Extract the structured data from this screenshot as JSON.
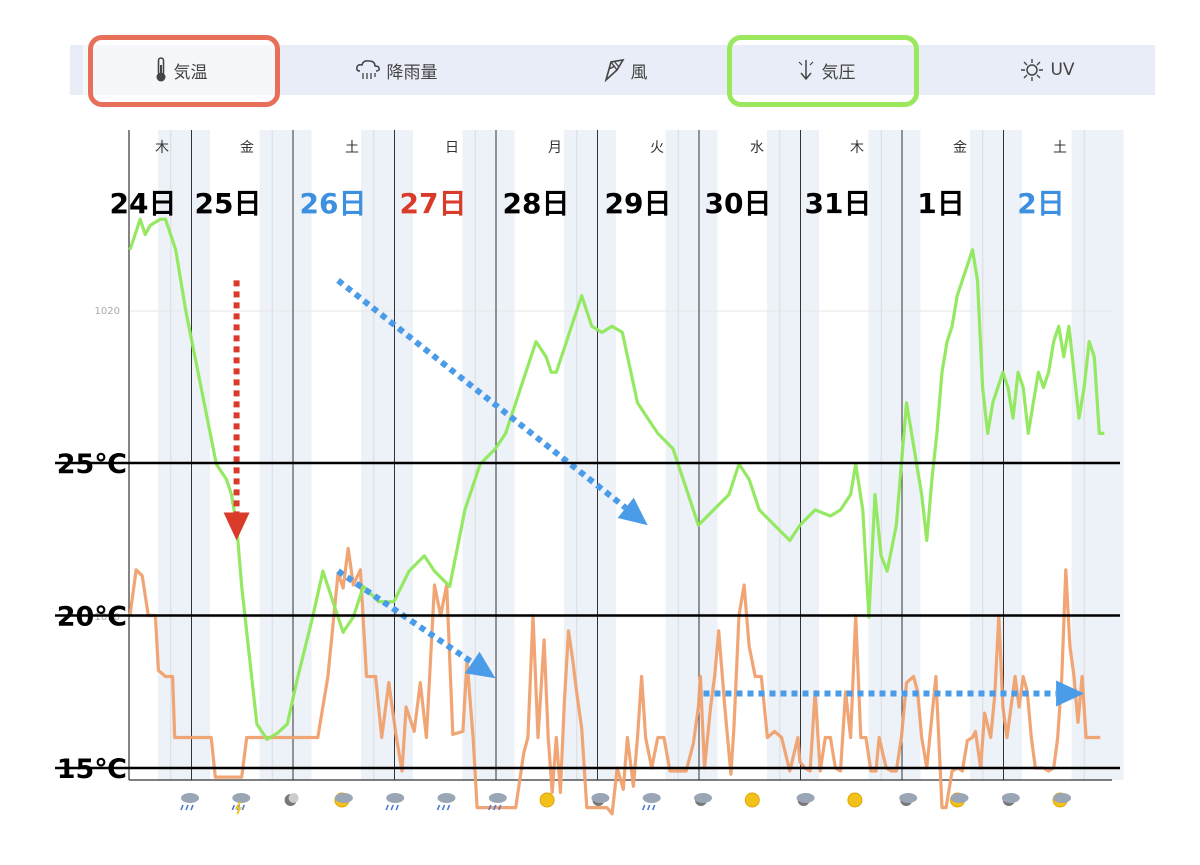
{
  "tabs": [
    {
      "key": "temp",
      "label": "気温",
      "icon": "thermometer-icon",
      "active": true
    },
    {
      "key": "rain",
      "label": "降雨量",
      "icon": "rain-cloud-icon",
      "active": false
    },
    {
      "key": "wind",
      "label": "風",
      "icon": "wind-sock-icon",
      "active": false
    },
    {
      "key": "pressure",
      "label": "気圧",
      "icon": "pressure-arrow-icon",
      "active": false
    },
    {
      "key": "uv",
      "label": "UV",
      "icon": "sun-icon",
      "active": false
    }
  ],
  "highlights": {
    "temp_tab_color": "#e8705a",
    "pressure_tab_color": "#9be85e"
  },
  "colors": {
    "temperature": "#f0a06e",
    "pressure": "#8fe85a",
    "red_arrow": "#d93a2a",
    "blue_arrow": "#4a9be8",
    "band": "#edf1f8"
  },
  "chart_data": {
    "type": "line",
    "weekdays": [
      "木",
      "金",
      "土",
      "日",
      "月",
      "火",
      "水",
      "木",
      "金",
      "土"
    ],
    "days": [
      {
        "label": "24日",
        "color": "#000000"
      },
      {
        "label": "25日",
        "color": "#000000"
      },
      {
        "label": "26日",
        "color": "#3d8fe0"
      },
      {
        "label": "27日",
        "color": "#d93a2a"
      },
      {
        "label": "28日",
        "color": "#000000"
      },
      {
        "label": "29日",
        "color": "#000000"
      },
      {
        "label": "30日",
        "color": "#000000"
      },
      {
        "label": "31日",
        "color": "#000000"
      },
      {
        "label": "1日",
        "color": "#000000"
      },
      {
        "label": "2日",
        "color": "#3d8fe0"
      }
    ],
    "x_range_days": [
      0,
      9.6
    ],
    "temp_axis": {
      "ticks": [
        "15℃",
        "20℃",
        "25℃"
      ],
      "values": [
        15,
        20,
        25
      ],
      "ylim": [
        15,
        25
      ]
    },
    "pressure_axis": {
      "ticks": [
        "1010",
        "1020"
      ],
      "values": [
        1010,
        1020
      ],
      "ylim": [
        1005,
        1025
      ]
    },
    "weather_icons": [
      "rain-icon",
      "thunder-rain-icon",
      "moon-icon",
      "sun-cloud-icon",
      "rain-icon",
      "rain-icon",
      "heavy-rain-icon",
      "sun-icon",
      "cloud-moon-icon",
      "rain-icon",
      "cloud-moon-icon",
      "sun-icon",
      "cloud-moon-icon",
      "sun-icon",
      "moon-cloud-icon",
      "sun-cloud-icon",
      "cloud-moon-icon",
      "sun-cloud-icon"
    ],
    "series": [
      {
        "key": "temperature",
        "points": [
          [
            0,
            20.0
          ],
          [
            0.06,
            21.5
          ],
          [
            0.12,
            21.3
          ],
          [
            0.18,
            20.0
          ],
          [
            0.25,
            20.0
          ],
          [
            0.28,
            18.2
          ],
          [
            0.35,
            18.0
          ],
          [
            0.42,
            18.0
          ],
          [
            0.44,
            16.0
          ],
          [
            0.5,
            16.0
          ],
          [
            0.8,
            16.0
          ],
          [
            0.84,
            14.7
          ],
          [
            1.1,
            14.7
          ],
          [
            1.15,
            16.0
          ],
          [
            1.6,
            16.0
          ],
          [
            1.8,
            16.0
          ],
          [
            1.85,
            16.0
          ],
          [
            1.95,
            18.0
          ],
          [
            2.05,
            21.4
          ],
          [
            2.1,
            20.9
          ],
          [
            2.15,
            22.2
          ],
          [
            2.2,
            21.0
          ],
          [
            2.27,
            21.5
          ],
          [
            2.33,
            18.0
          ],
          [
            2.42,
            18.0
          ],
          [
            2.48,
            16.0
          ],
          [
            2.55,
            17.8
          ],
          [
            2.62,
            16.1
          ],
          [
            2.68,
            14.9
          ],
          [
            2.72,
            17.0
          ],
          [
            2.8,
            16.2
          ],
          [
            2.86,
            17.8
          ],
          [
            2.92,
            16.0
          ],
          [
            3.0,
            21.0
          ],
          [
            3.06,
            20.0
          ],
          [
            3.12,
            21.0
          ],
          [
            3.18,
            16.1
          ],
          [
            3.28,
            16.2
          ],
          [
            3.32,
            18.5
          ],
          [
            3.38,
            16.0
          ],
          [
            3.42,
            13.7
          ],
          [
            3.5,
            13.7
          ],
          [
            3.8,
            13.7
          ],
          [
            3.88,
            15.5
          ],
          [
            3.92,
            16.0
          ],
          [
            3.97,
            20.0
          ],
          [
            4.02,
            16.0
          ],
          [
            4.08,
            19.2
          ],
          [
            4.12,
            16.0
          ],
          [
            4.16,
            14.2
          ],
          [
            4.2,
            16.0
          ],
          [
            4.24,
            14.2
          ],
          [
            4.28,
            17.2
          ],
          [
            4.32,
            19.5
          ],
          [
            4.36,
            18.6
          ],
          [
            4.4,
            17.5
          ],
          [
            4.45,
            16.3
          ],
          [
            4.5,
            13.7
          ],
          [
            4.7,
            13.7
          ],
          [
            4.75,
            13.5
          ],
          [
            4.8,
            15.0
          ],
          [
            4.86,
            14.3
          ],
          [
            4.9,
            16.0
          ],
          [
            4.96,
            14.4
          ],
          [
            5.0,
            16.0
          ],
          [
            5.04,
            18.0
          ],
          [
            5.08,
            16.0
          ],
          [
            5.14,
            15.0
          ],
          [
            5.2,
            16.0
          ],
          [
            5.26,
            16.0
          ],
          [
            5.32,
            14.9
          ],
          [
            5.4,
            14.9
          ],
          [
            5.48,
            14.9
          ],
          [
            5.55,
            15.8
          ],
          [
            5.6,
            17.0
          ],
          [
            5.62,
            18.0
          ],
          [
            5.66,
            15.0
          ],
          [
            5.72,
            17.0
          ],
          [
            5.76,
            18.0
          ],
          [
            5.8,
            19.5
          ],
          [
            5.86,
            17.0
          ],
          [
            5.92,
            14.8
          ],
          [
            5.95,
            16.3
          ],
          [
            6.0,
            20.0
          ],
          [
            6.05,
            21.0
          ],
          [
            6.1,
            19.0
          ],
          [
            6.16,
            18.0
          ],
          [
            6.22,
            18.0
          ],
          [
            6.28,
            16.0
          ],
          [
            6.35,
            16.2
          ],
          [
            6.42,
            16.0
          ],
          [
            6.5,
            14.9
          ],
          [
            6.58,
            16.0
          ],
          [
            6.6,
            15.2
          ],
          [
            6.65,
            15.0
          ],
          [
            6.7,
            14.9
          ],
          [
            6.75,
            17.5
          ],
          [
            6.8,
            14.9
          ],
          [
            6.85,
            16.0
          ],
          [
            6.9,
            16.0
          ],
          [
            6.95,
            15.0
          ],
          [
            7.0,
            14.9
          ],
          [
            7.05,
            17.5
          ],
          [
            7.1,
            16.0
          ],
          [
            7.15,
            20.0
          ],
          [
            7.2,
            16.0
          ],
          [
            7.25,
            16.0
          ],
          [
            7.3,
            14.9
          ],
          [
            7.35,
            14.9
          ],
          [
            7.38,
            16.0
          ],
          [
            7.45,
            15.0
          ],
          [
            7.5,
            14.9
          ],
          [
            7.55,
            14.9
          ],
          [
            7.6,
            16.0
          ],
          [
            7.65,
            17.8
          ],
          [
            7.72,
            18.0
          ],
          [
            7.76,
            17.5
          ],
          [
            7.8,
            16.0
          ],
          [
            7.85,
            15.0
          ],
          [
            7.88,
            16.0
          ],
          [
            7.94,
            18.0
          ],
          [
            8.0,
            13.7
          ],
          [
            8.04,
            13.7
          ],
          [
            8.1,
            14.9
          ],
          [
            8.16,
            15.0
          ],
          [
            8.2,
            14.9
          ],
          [
            8.25,
            15.9
          ],
          [
            8.3,
            16.0
          ],
          [
            8.33,
            16.2
          ],
          [
            8.38,
            15.0
          ],
          [
            8.42,
            16.8
          ],
          [
            8.48,
            16.0
          ],
          [
            8.52,
            17.4
          ],
          [
            8.56,
            20.0
          ],
          [
            8.6,
            17.0
          ],
          [
            8.64,
            16.0
          ],
          [
            8.68,
            17.0
          ],
          [
            8.72,
            18.0
          ],
          [
            8.76,
            17.0
          ],
          [
            8.8,
            18.0
          ],
          [
            8.84,
            17.5
          ],
          [
            8.88,
            16.0
          ],
          [
            8.92,
            15.0
          ],
          [
            9.0,
            15.0
          ],
          [
            9.05,
            14.9
          ],
          [
            9.1,
            15.0
          ],
          [
            9.14,
            16.0
          ],
          [
            9.18,
            18.0
          ],
          [
            9.22,
            21.5
          ],
          [
            9.26,
            19.0
          ],
          [
            9.3,
            18.0
          ],
          [
            9.34,
            16.5
          ],
          [
            9.38,
            18.0
          ],
          [
            9.42,
            16.0
          ],
          [
            9.48,
            16.0
          ],
          [
            9.56,
            16.0
          ]
        ]
      },
      {
        "key": "pressure",
        "points": [
          [
            0,
            1022.0
          ],
          [
            0.05,
            1022.5
          ],
          [
            0.1,
            1023.0
          ],
          [
            0.15,
            1022.5
          ],
          [
            0.2,
            1022.8
          ],
          [
            0.3,
            1023.0
          ],
          [
            0.35,
            1023.0
          ],
          [
            0.45,
            1022.0
          ],
          [
            0.55,
            1020.0
          ],
          [
            0.7,
            1017.5
          ],
          [
            0.85,
            1015.0
          ],
          [
            0.95,
            1014.5
          ],
          [
            1.0,
            1014.0
          ],
          [
            1.05,
            1013.0
          ],
          [
            1.1,
            1011.0
          ],
          [
            1.2,
            1008.0
          ],
          [
            1.25,
            1006.5
          ],
          [
            1.35,
            1006.0
          ],
          [
            1.45,
            1006.2
          ],
          [
            1.55,
            1006.5
          ],
          [
            1.65,
            1008.0
          ],
          [
            1.8,
            1010.0
          ],
          [
            1.9,
            1011.5
          ],
          [
            2.0,
            1010.5
          ],
          [
            2.1,
            1009.5
          ],
          [
            2.2,
            1010.0
          ],
          [
            2.3,
            1011.0
          ],
          [
            2.45,
            1010.5
          ],
          [
            2.6,
            1010.5
          ],
          [
            2.75,
            1011.5
          ],
          [
            2.9,
            1012.0
          ],
          [
            3.0,
            1011.5
          ],
          [
            3.15,
            1011.0
          ],
          [
            3.3,
            1013.5
          ],
          [
            3.45,
            1015.0
          ],
          [
            3.6,
            1015.5
          ],
          [
            3.7,
            1016.0
          ],
          [
            3.85,
            1017.5
          ],
          [
            4.0,
            1019.0
          ],
          [
            4.1,
            1018.5
          ],
          [
            4.15,
            1018.0
          ],
          [
            4.2,
            1018.0
          ],
          [
            4.3,
            1019.0
          ],
          [
            4.35,
            1019.5
          ],
          [
            4.4,
            1020.0
          ],
          [
            4.45,
            1020.5
          ],
          [
            4.55,
            1019.5
          ],
          [
            4.65,
            1019.3
          ],
          [
            4.75,
            1019.5
          ],
          [
            4.85,
            1019.3
          ],
          [
            5.0,
            1017.0
          ],
          [
            5.1,
            1016.5
          ],
          [
            5.2,
            1016.0
          ],
          [
            5.35,
            1015.5
          ],
          [
            5.5,
            1014.0
          ],
          [
            5.6,
            1013.0
          ],
          [
            5.75,
            1013.5
          ],
          [
            5.9,
            1014.0
          ],
          [
            6.0,
            1015.0
          ],
          [
            6.1,
            1014.5
          ],
          [
            6.2,
            1013.5
          ],
          [
            6.35,
            1013.0
          ],
          [
            6.5,
            1012.5
          ],
          [
            6.6,
            1013.0
          ],
          [
            6.75,
            1013.5
          ],
          [
            6.9,
            1013.3
          ],
          [
            7.0,
            1013.5
          ],
          [
            7.1,
            1014.0
          ],
          [
            7.15,
            1015.0
          ],
          [
            7.22,
            1013.5
          ],
          [
            7.28,
            1010.0
          ],
          [
            7.34,
            1014.0
          ],
          [
            7.4,
            1012.0
          ],
          [
            7.46,
            1011.5
          ],
          [
            7.55,
            1013.0
          ],
          [
            7.6,
            1015.0
          ],
          [
            7.65,
            1017.0
          ],
          [
            7.7,
            1016.0
          ],
          [
            7.75,
            1015.0
          ],
          [
            7.8,
            1014.0
          ],
          [
            7.85,
            1012.5
          ],
          [
            7.9,
            1014.5
          ],
          [
            7.95,
            1016.0
          ],
          [
            8.0,
            1018.0
          ],
          [
            8.05,
            1019.0
          ],
          [
            8.1,
            1019.5
          ],
          [
            8.15,
            1020.5
          ],
          [
            8.2,
            1021.0
          ],
          [
            8.25,
            1021.5
          ],
          [
            8.3,
            1022.0
          ],
          [
            8.35,
            1021.0
          ],
          [
            8.4,
            1017.5
          ],
          [
            8.45,
            1016.0
          ],
          [
            8.5,
            1017.0
          ],
          [
            8.55,
            1017.5
          ],
          [
            8.6,
            1018.0
          ],
          [
            8.65,
            1017.5
          ],
          [
            8.7,
            1016.5
          ],
          [
            8.75,
            1018.0
          ],
          [
            8.8,
            1017.5
          ],
          [
            8.85,
            1016.0
          ],
          [
            8.9,
            1017.0
          ],
          [
            8.95,
            1018.0
          ],
          [
            9.0,
            1017.5
          ],
          [
            9.05,
            1018.0
          ],
          [
            9.1,
            1019.0
          ],
          [
            9.15,
            1019.5
          ],
          [
            9.2,
            1018.5
          ],
          [
            9.25,
            1019.5
          ],
          [
            9.3,
            1018.0
          ],
          [
            9.35,
            1016.5
          ],
          [
            9.4,
            1017.5
          ],
          [
            9.45,
            1019.0
          ],
          [
            9.5,
            1018.5
          ],
          [
            9.55,
            1016.0
          ],
          [
            9.6,
            1016.0
          ]
        ]
      }
    ],
    "annotations": [
      {
        "type": "arrow",
        "color": "red",
        "from": [
          1.05,
          1021.0
        ],
        "to": [
          1.05,
          1012.5
        ]
      },
      {
        "type": "arrow",
        "color": "blue",
        "from": [
          2.05,
          1021.0
        ],
        "to": [
          5.1,
          1013.0
        ]
      },
      {
        "type": "arrow",
        "color": "blue",
        "from": [
          2.05,
          1011.5
        ],
        "to": [
          3.6,
          1008.0
        ]
      },
      {
        "type": "arrow",
        "color": "blue",
        "from": [
          5.65,
          1007.5
        ],
        "to": [
          9.4,
          1007.5
        ]
      }
    ]
  }
}
